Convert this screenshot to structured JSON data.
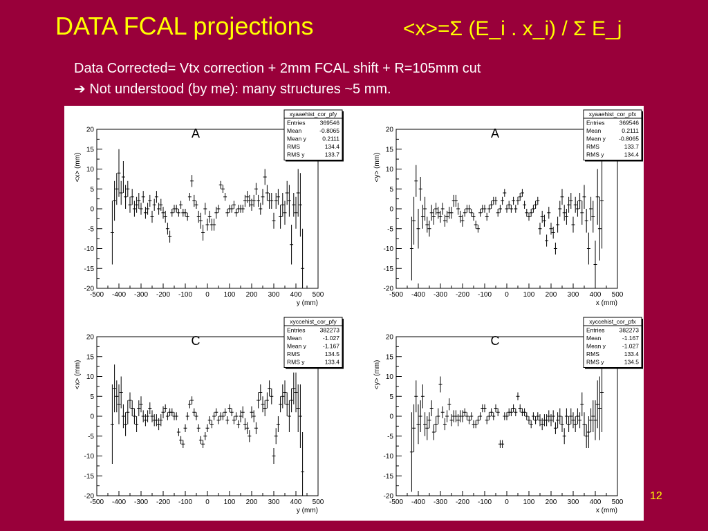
{
  "slide": {
    "title": "DATA FCAL projections",
    "formula": "<x>=Σ (E_i . x_i) / Σ  E_j",
    "subtitle_line1": "Data Corrected= Vtx correction + 2mm FCAL shift + R=105mm cut",
    "subtitle_line2": "➔ Not understood (by me): many structures ~5 mm.",
    "page_number": "12"
  },
  "chart_data": [
    {
      "type": "scatter",
      "panel_label": "A",
      "xlabel": "y (mm)",
      "ylabel": "<x> (mm)",
      "xlim": [
        -500,
        500
      ],
      "ylim": [
        -20,
        20
      ],
      "xticks": [
        -500,
        -400,
        -300,
        -200,
        -100,
        0,
        100,
        200,
        300,
        400,
        500
      ],
      "yticks": [
        -20,
        -15,
        -10,
        -5,
        0,
        5,
        10,
        15,
        20
      ],
      "stats": {
        "name": "xyaaehist_cor_pfy",
        "rows": [
          [
            "Entries",
            "369546"
          ],
          [
            "Mean",
            "-0.8065"
          ],
          [
            "Mean y",
            "0.2111"
          ],
          [
            "RMS",
            "134.4"
          ],
          [
            "RMS y",
            "133.7"
          ]
        ]
      },
      "x": [
        -430,
        -420,
        -410,
        -400,
        -390,
        -380,
        -370,
        -360,
        -350,
        -340,
        -330,
        -320,
        -310,
        -300,
        -290,
        -280,
        -270,
        -260,
        -250,
        -240,
        -230,
        -220,
        -210,
        -200,
        -190,
        -180,
        -170,
        -160,
        -150,
        -140,
        -130,
        -120,
        -110,
        -100,
        -90,
        -80,
        -70,
        -60,
        -50,
        -40,
        -30,
        -20,
        -10,
        0,
        10,
        20,
        30,
        40,
        50,
        60,
        70,
        80,
        90,
        100,
        110,
        120,
        130,
        140,
        150,
        160,
        170,
        180,
        190,
        200,
        210,
        220,
        230,
        240,
        250,
        260,
        270,
        280,
        290,
        300,
        310,
        320,
        330,
        340,
        350,
        360,
        370,
        380,
        390,
        400,
        410,
        420,
        430
      ],
      "y": [
        -6,
        2,
        5,
        9,
        4,
        8,
        3,
        5,
        1,
        3,
        0,
        1,
        2,
        0,
        3,
        -1,
        0,
        2,
        -2,
        1,
        3,
        0,
        1,
        -1,
        -2,
        -5,
        -7,
        -1,
        0,
        0,
        -1,
        1,
        -1,
        -1,
        -2,
        3,
        7,
        2,
        1,
        -2,
        -3,
        -6,
        0,
        -4,
        -2,
        -4,
        -4,
        -1,
        0,
        6,
        5,
        3,
        -1,
        0,
        0,
        1,
        -1,
        0,
        0,
        0,
        2,
        3,
        2,
        1,
        2,
        5,
        2,
        0,
        3,
        8,
        4,
        2,
        2,
        -3,
        2,
        3,
        -2,
        1,
        -1,
        4,
        2,
        -9,
        1,
        -1,
        4,
        1,
        -15
      ],
      "err": [
        8,
        5,
        4,
        6,
        3,
        4,
        3,
        2,
        2,
        2,
        2,
        2,
        2,
        1.5,
        1.5,
        1.5,
        1.5,
        1.5,
        1.5,
        1.5,
        1.5,
        1.5,
        1.5,
        1.5,
        1.5,
        1.5,
        1.5,
        1,
        1,
        1,
        1,
        1,
        1,
        1,
        1,
        1,
        1.5,
        1.5,
        1,
        1.5,
        2,
        2,
        1.5,
        1.5,
        1.5,
        1.5,
        1.5,
        1.5,
        1,
        1,
        1,
        1,
        1,
        1,
        1,
        1,
        1,
        1,
        1,
        1,
        1.5,
        1.5,
        1.5,
        1.5,
        1.5,
        1.5,
        1.5,
        1.5,
        2,
        2,
        2,
        2,
        2,
        2,
        2,
        2,
        3,
        3,
        3,
        3,
        4,
        5,
        3,
        4,
        6,
        8,
        10
      ]
    },
    {
      "type": "scatter",
      "panel_label": "A",
      "xlabel": "x (mm)",
      "ylabel": "<y> (mm)",
      "xlim": [
        -500,
        500
      ],
      "ylim": [
        -20,
        20
      ],
      "xticks": [
        -500,
        -400,
        -300,
        -200,
        -100,
        0,
        100,
        200,
        300,
        400,
        500
      ],
      "yticks": [
        -20,
        -15,
        -10,
        -5,
        0,
        5,
        10,
        15,
        20
      ],
      "stats": {
        "name": "xyaaehist_cor_pfx",
        "rows": [
          [
            "Entries",
            "369546"
          ],
          [
            "Mean",
            "0.2111"
          ],
          [
            "Mean y",
            "-0.8065"
          ],
          [
            "RMS",
            "133.7"
          ],
          [
            "RMS y",
            "134.4"
          ]
        ]
      },
      "x": [
        -430,
        -420,
        -410,
        -400,
        -390,
        -380,
        -370,
        -360,
        -350,
        -340,
        -330,
        -320,
        -310,
        -300,
        -290,
        -280,
        -270,
        -260,
        -250,
        -240,
        -230,
        -220,
        -210,
        -200,
        -190,
        -180,
        -170,
        -160,
        -150,
        -140,
        -130,
        -120,
        -110,
        -100,
        -90,
        -80,
        -70,
        -60,
        -50,
        -40,
        -30,
        -20,
        -10,
        0,
        10,
        20,
        30,
        40,
        50,
        60,
        70,
        80,
        90,
        100,
        110,
        120,
        130,
        140,
        150,
        160,
        170,
        180,
        190,
        200,
        210,
        220,
        230,
        240,
        250,
        260,
        270,
        280,
        290,
        300,
        310,
        320,
        330,
        340,
        350,
        360,
        370,
        380,
        390,
        400,
        410,
        420,
        430
      ],
      "y": [
        -10,
        -3,
        7,
        -5,
        5,
        -2,
        0,
        -4,
        -5,
        -1,
        -2,
        0,
        -1,
        -2,
        0,
        -3,
        -2,
        -1,
        -1,
        2,
        2,
        0,
        -2,
        -3,
        -1,
        0,
        0,
        -1,
        -2,
        -4,
        -5,
        -1,
        0,
        0,
        -2,
        0,
        1,
        2,
        2,
        -1,
        0,
        2,
        4,
        0,
        1,
        0,
        2,
        0,
        2,
        3,
        4,
        1,
        -1,
        -2,
        -1,
        0,
        1,
        2,
        -5,
        -2,
        -3,
        -8,
        -1,
        -5,
        -6,
        -10,
        -4,
        0,
        3,
        -1,
        -2,
        1,
        2,
        -4,
        1,
        0,
        2,
        -1,
        3,
        -3,
        -10,
        0,
        -2,
        -14,
        3,
        -5,
        2
      ],
      "err": [
        8,
        6,
        4,
        5,
        3,
        3,
        3,
        2,
        2,
        2,
        2,
        1.5,
        1.5,
        1.5,
        1.5,
        1.5,
        1.5,
        1.5,
        1.5,
        1.5,
        1.5,
        1.5,
        1.5,
        1.5,
        1,
        1,
        1,
        1,
        1,
        1,
        1,
        1,
        1,
        1,
        1,
        1,
        1,
        1,
        1,
        1,
        1,
        1,
        1,
        1,
        1,
        1,
        1,
        1,
        1,
        1,
        1,
        1,
        1,
        1,
        1,
        1,
        1,
        1,
        1.5,
        1.5,
        1.5,
        1.5,
        1.5,
        1.5,
        1.5,
        1.5,
        2,
        2,
        2,
        2,
        2,
        2,
        2,
        2,
        2,
        2,
        2,
        3,
        3,
        3,
        4,
        3,
        4,
        6,
        7,
        8,
        12
      ]
    },
    {
      "type": "scatter",
      "panel_label": "C",
      "xlabel": "y (mm)",
      "ylabel": "<x> (mm)",
      "xlim": [
        -500,
        500
      ],
      "ylim": [
        -20,
        20
      ],
      "xticks": [
        -500,
        -400,
        -300,
        -200,
        -100,
        0,
        100,
        200,
        300,
        400,
        500
      ],
      "yticks": [
        -20,
        -15,
        -10,
        -5,
        0,
        5,
        10,
        15,
        20
      ],
      "stats": {
        "name": "xyccehist_cor_pfy",
        "rows": [
          [
            "Entries",
            "382273"
          ],
          [
            "Mean",
            "-1.027"
          ],
          [
            "Mean y",
            "-1.167"
          ],
          [
            "RMS",
            "134.5"
          ],
          [
            "RMS y",
            "133.4"
          ]
        ]
      },
      "x": [
        -430,
        -420,
        -410,
        -400,
        -390,
        -380,
        -370,
        -360,
        -350,
        -340,
        -330,
        -320,
        -310,
        -300,
        -290,
        -280,
        -270,
        -260,
        -250,
        -240,
        -230,
        -220,
        -210,
        -200,
        -190,
        -180,
        -170,
        -160,
        -150,
        -140,
        -130,
        -120,
        -110,
        -100,
        -90,
        -80,
        -70,
        -60,
        -50,
        -40,
        -30,
        -20,
        -10,
        0,
        10,
        20,
        30,
        40,
        50,
        60,
        70,
        80,
        90,
        100,
        110,
        120,
        130,
        140,
        150,
        160,
        170,
        180,
        190,
        200,
        210,
        220,
        230,
        240,
        250,
        260,
        270,
        280,
        290,
        300,
        310,
        320,
        330,
        340,
        350,
        360,
        370,
        380,
        390,
        400,
        410,
        420,
        430
      ],
      "y": [
        -2,
        7,
        5,
        3,
        6,
        0,
        -2,
        1,
        4,
        2,
        0,
        -2,
        2,
        3,
        0,
        -1,
        0,
        2,
        0,
        -1,
        -1,
        -2,
        -1,
        1,
        2,
        0,
        1,
        1,
        0,
        0,
        -4,
        -6,
        -7,
        -3,
        0,
        3,
        4,
        1,
        0,
        -3,
        -6,
        -7,
        -5,
        -3,
        -1,
        -2,
        0,
        1,
        -1,
        0,
        0,
        1,
        -1,
        2,
        1,
        -1,
        0,
        -2,
        0,
        1,
        -2,
        -3,
        -5,
        1,
        0,
        -3,
        4,
        6,
        3,
        2,
        4,
        7,
        5,
        -10,
        -5,
        -2,
        3,
        5,
        6,
        3,
        0,
        4,
        7,
        6,
        2,
        0,
        -14
      ],
      "err": [
        10,
        6,
        4,
        5,
        4,
        3,
        3,
        3,
        2,
        2,
        2,
        2,
        2,
        2,
        1.5,
        1.5,
        1.5,
        1.5,
        1.5,
        1.5,
        1.5,
        1.5,
        1.5,
        1.5,
        1,
        1,
        1,
        1,
        1,
        1,
        1,
        1,
        1,
        1,
        1,
        1,
        1,
        1,
        1,
        1,
        1,
        1,
        1,
        1,
        1,
        1,
        1,
        1,
        1,
        1,
        1,
        1,
        1,
        1,
        1,
        1,
        1,
        1,
        1.5,
        1.5,
        1.5,
        1.5,
        1.5,
        1.5,
        1.5,
        1.5,
        2,
        2,
        2,
        2,
        2,
        2,
        2,
        2,
        2,
        2,
        2,
        3,
        3,
        3,
        4,
        3,
        4,
        5,
        6,
        8,
        10
      ]
    },
    {
      "type": "scatter",
      "panel_label": "C",
      "xlabel": "x (mm)",
      "ylabel": "<y> (mm)",
      "xlim": [
        -500,
        500
      ],
      "ylim": [
        -20,
        20
      ],
      "xticks": [
        -500,
        -400,
        -300,
        -200,
        -100,
        0,
        100,
        200,
        300,
        400,
        500
      ],
      "yticks": [
        -20,
        -15,
        -10,
        -5,
        0,
        5,
        10,
        15,
        20
      ],
      "stats": {
        "name": "xyccehist_cor_pfx",
        "rows": [
          [
            "Entries",
            "382273"
          ],
          [
            "Mean",
            "-1.167"
          ],
          [
            "Mean y",
            "-1.027"
          ],
          [
            "RMS",
            "133.4"
          ],
          [
            "RMS y",
            "134.5"
          ]
        ]
      },
      "x": [
        -430,
        -420,
        -410,
        -400,
        -390,
        -380,
        -370,
        -360,
        -350,
        -340,
        -330,
        -320,
        -310,
        -300,
        -290,
        -280,
        -270,
        -260,
        -250,
        -240,
        -230,
        -220,
        -210,
        -200,
        -190,
        -180,
        -170,
        -160,
        -150,
        -140,
        -130,
        -120,
        -110,
        -100,
        -90,
        -80,
        -70,
        -60,
        -50,
        -40,
        -30,
        -20,
        -10,
        0,
        10,
        20,
        30,
        40,
        50,
        60,
        70,
        80,
        90,
        100,
        110,
        120,
        130,
        140,
        150,
        160,
        170,
        180,
        190,
        200,
        210,
        220,
        230,
        240,
        250,
        260,
        270,
        280,
        290,
        300,
        310,
        320,
        330,
        340,
        350,
        360,
        370,
        380,
        390,
        400,
        410,
        420,
        430
      ],
      "y": [
        -9,
        -3,
        5,
        -2,
        0,
        5,
        -2,
        -3,
        -1,
        2,
        -4,
        -2,
        0,
        8,
        1,
        -2,
        0,
        3,
        -1,
        0,
        0,
        -1,
        0,
        0,
        1,
        0,
        -1,
        0,
        -2,
        -2,
        -1,
        0,
        2,
        2,
        -1,
        0,
        1,
        0,
        2,
        1,
        -7,
        -7,
        0,
        0,
        1,
        1,
        2,
        1,
        5,
        2,
        1,
        1,
        0,
        -1,
        -2,
        0,
        -1,
        0,
        -1,
        -2,
        -1,
        -1,
        0,
        -1,
        0,
        -3,
        -1,
        0,
        -2,
        -5,
        0,
        -2,
        0,
        -1,
        -2,
        0,
        -1,
        3,
        -2,
        -5,
        -4,
        -1,
        0,
        -1,
        3,
        2,
        6
      ],
      "err": [
        10,
        6,
        4,
        5,
        4,
        3,
        3,
        3,
        2,
        2,
        2,
        2,
        2,
        2,
        1.5,
        1.5,
        1.5,
        1.5,
        1.5,
        1.5,
        1.5,
        1.5,
        1.5,
        1.5,
        1,
        1,
        1,
        1,
        1,
        1,
        1,
        1,
        1,
        1,
        1,
        1,
        1,
        1,
        1,
        1,
        1,
        1,
        1,
        1,
        1,
        1,
        1,
        1,
        1,
        1,
        1,
        1,
        1,
        1,
        1,
        1,
        1,
        1,
        1.5,
        1.5,
        1.5,
        1.5,
        1.5,
        1.5,
        1.5,
        1.5,
        2,
        2,
        2,
        2,
        2,
        2,
        2,
        2,
        2,
        2,
        2,
        3,
        3,
        3,
        4,
        3,
        4,
        5,
        6,
        8,
        10
      ]
    }
  ]
}
